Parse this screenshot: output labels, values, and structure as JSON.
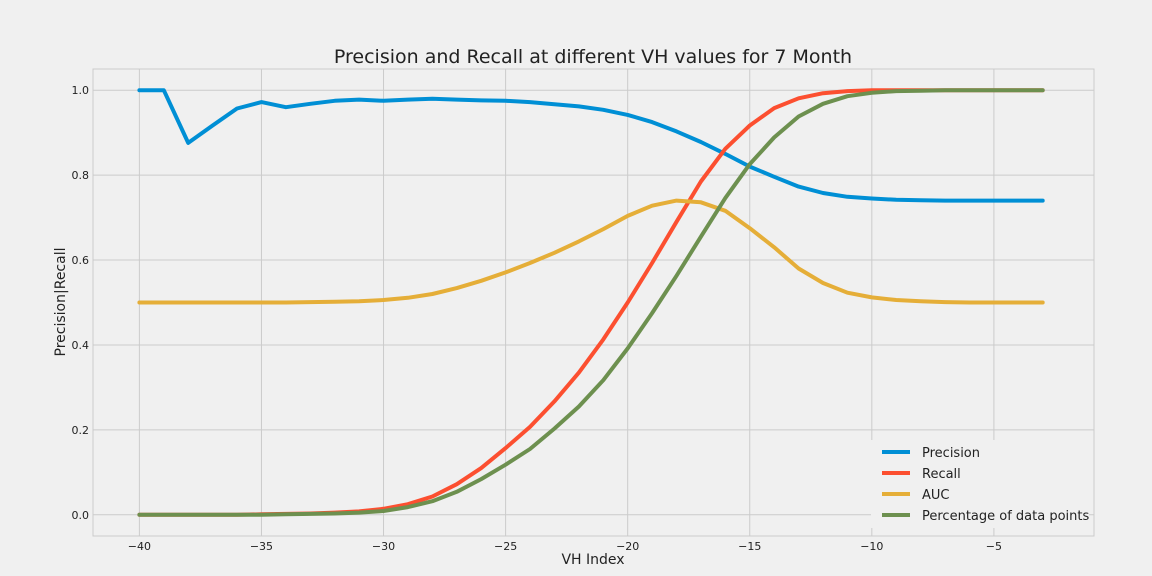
{
  "chart_data": {
    "type": "line",
    "title": "Precision and Recall at different VH values for 7 Month",
    "xlabel": "VH Index",
    "ylabel": "Precision|Recall",
    "xlim": [
      -41.9,
      -0.9
    ],
    "ylim": [
      -0.05,
      1.05
    ],
    "xticks": [
      -40,
      -35,
      -30,
      -25,
      -20,
      -15,
      -10,
      -5
    ],
    "xtick_labels": [
      "−40",
      "−35",
      "−30",
      "−25",
      "−20",
      "−15",
      "−10",
      "−5"
    ],
    "yticks": [
      0.0,
      0.2,
      0.4,
      0.6,
      0.8,
      1.0
    ],
    "ytick_labels": [
      "0.0",
      "0.2",
      "0.4",
      "0.6",
      "0.8",
      "1.0"
    ],
    "grid": true,
    "legend_position": "lower-right",
    "x": [
      -40,
      -39,
      -38,
      -37,
      -36,
      -35,
      -34,
      -33,
      -32,
      -31,
      -30,
      -29,
      -28,
      -27,
      -26,
      -25,
      -24,
      -23,
      -22,
      -21,
      -20,
      -19,
      -18,
      -17,
      -16,
      -15,
      -14,
      -13,
      -12,
      -11,
      -10,
      -9,
      -8,
      -7,
      -6,
      -5,
      -4,
      -3
    ],
    "series": [
      {
        "name": "Precision",
        "color": "#008fd5",
        "values": [
          1.0,
          1.0,
          0.876,
          0.917,
          0.957,
          0.972,
          0.96,
          0.968,
          0.975,
          0.978,
          0.975,
          0.978,
          0.98,
          0.978,
          0.976,
          0.975,
          0.972,
          0.967,
          0.962,
          0.954,
          0.942,
          0.925,
          0.903,
          0.878,
          0.85,
          0.82,
          0.796,
          0.773,
          0.758,
          0.749,
          0.745,
          0.742,
          0.741,
          0.74,
          0.74,
          0.74,
          0.74,
          0.74
        ]
      },
      {
        "name": "Recall",
        "color": "#fc4f30",
        "values": [
          0.0,
          0.0,
          0.0,
          0.0,
          0.0,
          0.001,
          0.002,
          0.003,
          0.005,
          0.008,
          0.014,
          0.025,
          0.043,
          0.072,
          0.11,
          0.157,
          0.207,
          0.267,
          0.335,
          0.413,
          0.5,
          0.593,
          0.69,
          0.785,
          0.862,
          0.917,
          0.958,
          0.981,
          0.993,
          0.998,
          1.0,
          1.0,
          1.0,
          1.0,
          1.0,
          1.0,
          1.0,
          1.0
        ]
      },
      {
        "name": "AUC",
        "color": "#e5ae38",
        "values": [
          0.5,
          0.5,
          0.5,
          0.5,
          0.5,
          0.5,
          0.5,
          0.501,
          0.502,
          0.503,
          0.506,
          0.511,
          0.52,
          0.534,
          0.551,
          0.571,
          0.593,
          0.617,
          0.644,
          0.673,
          0.704,
          0.728,
          0.74,
          0.736,
          0.716,
          0.675,
          0.63,
          0.58,
          0.546,
          0.523,
          0.512,
          0.506,
          0.503,
          0.501,
          0.5,
          0.5,
          0.5,
          0.5
        ]
      },
      {
        "name": "Percentage of data points",
        "color": "#6d904f",
        "values": [
          0.0,
          0.0,
          0.0,
          0.0,
          0.0,
          0.0,
          0.001,
          0.002,
          0.003,
          0.005,
          0.009,
          0.018,
          0.032,
          0.054,
          0.084,
          0.118,
          0.155,
          0.203,
          0.255,
          0.317,
          0.392,
          0.475,
          0.563,
          0.655,
          0.746,
          0.826,
          0.889,
          0.938,
          0.968,
          0.986,
          0.994,
          0.998,
          0.999,
          1.0,
          1.0,
          1.0,
          1.0,
          1.0
        ]
      }
    ]
  }
}
